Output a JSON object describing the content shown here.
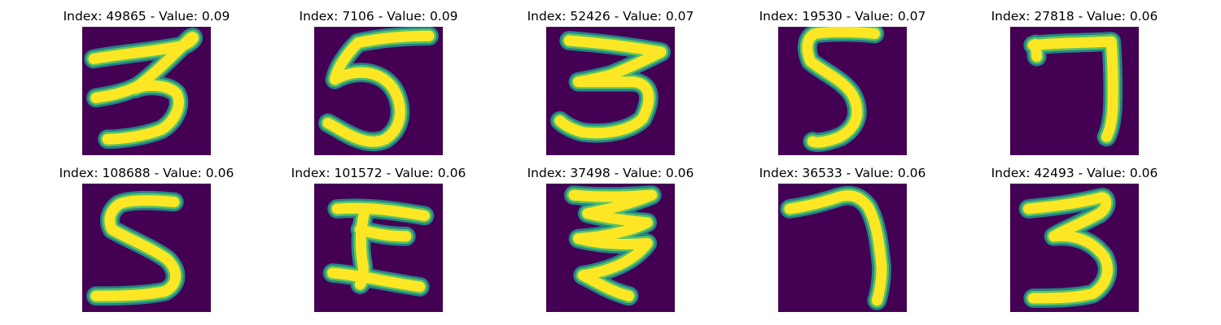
{
  "chart_data": {
    "type": "image-grid",
    "colormap": "viridis",
    "colors": {
      "background": "#440154",
      "stroke_edge": "#21918c",
      "stroke_core": "#fde725"
    },
    "panels": [
      {
        "title": "Index: 49865 - Value: 0.09",
        "index": 49865,
        "value": 0.09,
        "digit": "3"
      },
      {
        "title": "Index: 7106 - Value: 0.09",
        "index": 7106,
        "value": 0.09,
        "digit": "5"
      },
      {
        "title": "Index: 52426 - Value: 0.07",
        "index": 52426,
        "value": 0.07,
        "digit": "3"
      },
      {
        "title": "Index: 19530 - Value: 0.07",
        "index": 19530,
        "value": 0.07,
        "digit": "5"
      },
      {
        "title": "Index: 27818 - Value: 0.06",
        "index": 27818,
        "value": 0.06,
        "digit": "7"
      },
      {
        "title": "Index: 108688 - Value: 0.06",
        "index": 108688,
        "value": 0.06,
        "digit": "5"
      },
      {
        "title": "Index: 101572 - Value: 0.06",
        "index": 101572,
        "value": 0.06,
        "digit": "5"
      },
      {
        "title": "Index: 37498 - Value: 0.06",
        "index": 37498,
        "value": 0.06,
        "digit": "3"
      },
      {
        "title": "Index: 36533 - Value: 0.06",
        "index": 36533,
        "value": 0.06,
        "digit": "7"
      },
      {
        "title": "Index: 42493 - Value: 0.06",
        "index": 42493,
        "value": 0.06,
        "digit": "3"
      }
    ]
  }
}
